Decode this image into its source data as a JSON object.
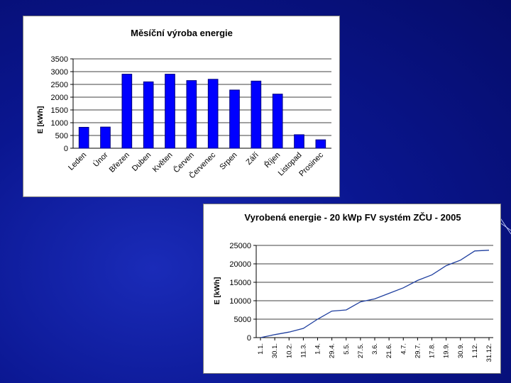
{
  "colors": {
    "background": "#0a1690",
    "bar_fill": "#0000ff",
    "bar_stroke": "#000080",
    "line_color": "#1f3f9f"
  },
  "chart_data": [
    {
      "type": "bar",
      "title": "Měsíční výroba energie",
      "xlabel": "",
      "ylabel": "E [kWh]",
      "ylim": [
        0,
        3500
      ],
      "yticks": [
        0,
        500,
        1000,
        1500,
        2000,
        2500,
        3000,
        3500
      ],
      "grid": true,
      "categories": [
        "Leden",
        "Únor",
        "Březen",
        "Duben",
        "Květen",
        "Červen",
        "Červenec",
        "Srpen",
        "Září",
        "Říjen",
        "Listopad",
        "Prosinec"
      ],
      "values": [
        820,
        830,
        2900,
        2600,
        2900,
        2650,
        2700,
        2280,
        2630,
        2120,
        530,
        330
      ]
    },
    {
      "type": "line",
      "title": "Vyrobená energie - 20 kWp FV systém ZČU - 2005",
      "xlabel": "",
      "ylabel": "E [kWh]",
      "ylim": [
        0,
        25000
      ],
      "yticks": [
        0,
        5000,
        10000,
        15000,
        20000,
        25000
      ],
      "grid": true,
      "xtick_labels": [
        "1.1.",
        "30.1.",
        "10.2.",
        "11.3.",
        "1.4.",
        "29.4.",
        "5.5.",
        "27.5.",
        "3.6.",
        "21.6.",
        "4.7.",
        "29.7.",
        "17.8.",
        "19.9.",
        "30.9.",
        "1.12.",
        "31.12."
      ],
      "x": [
        "1.1.",
        "30.1.",
        "10.2.",
        "11.3.",
        "1.4.",
        "29.4.",
        "5.5.",
        "27.5.",
        "3.6.",
        "21.6.",
        "4.7.",
        "29.7.",
        "17.8.",
        "19.9.",
        "30.9.",
        "1.12.",
        "31.12."
      ],
      "series": [
        {
          "values": [
            0,
            800,
            1500,
            2500,
            5000,
            7200,
            7500,
            9700,
            10500,
            12000,
            13500,
            15500,
            17000,
            19500,
            21000,
            23500,
            23700
          ]
        }
      ]
    }
  ]
}
